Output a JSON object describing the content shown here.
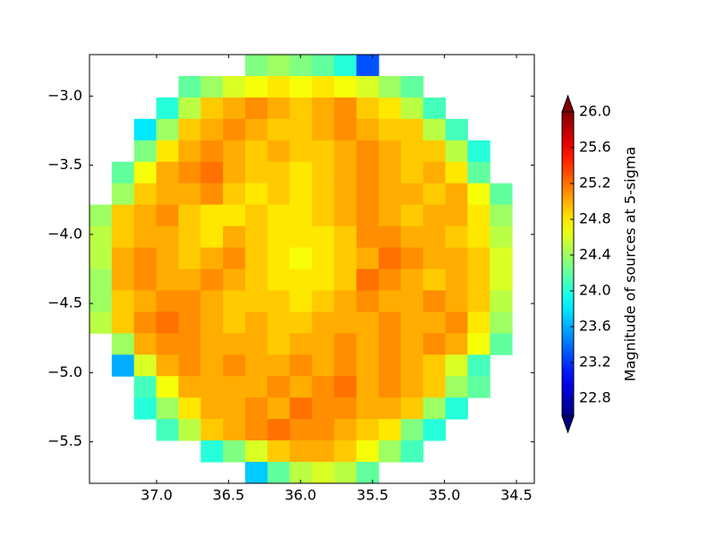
{
  "chart_data": {
    "type": "heatmap",
    "xlim": [
      37.466,
      34.376
    ],
    "ylim": [
      -5.8,
      -2.7
    ],
    "xticks": [
      {
        "value": 37.0,
        "label": "37.0"
      },
      {
        "value": 36.5,
        "label": "36.5"
      },
      {
        "value": 36.0,
        "label": "36.0"
      },
      {
        "value": 35.5,
        "label": "35.5"
      },
      {
        "value": 35.0,
        "label": "35.0"
      },
      {
        "value": 34.5,
        "label": "34.5"
      }
    ],
    "yticks": [
      {
        "value": -3.0,
        "label": "−3.0"
      },
      {
        "value": -3.5,
        "label": "−3.5"
      },
      {
        "value": -4.0,
        "label": "−4.0"
      },
      {
        "value": -4.5,
        "label": "−4.5"
      },
      {
        "value": -5.0,
        "label": "−5.0"
      },
      {
        "value": -5.5,
        "label": "−5.5"
      }
    ],
    "colorbar": {
      "label": "Magnitude of sources at 5-sigma",
      "lim": [
        22.6,
        26.0
      ],
      "colormap": "jet",
      "extend": "both",
      "ticks": [
        22.8,
        23.2,
        23.6,
        {
          "value": 24.0,
          "label": "24.0"
        },
        24.4,
        24.8,
        25.2,
        25.6,
        {
          "value": 26.0,
          "label": "26.0"
        }
      ]
    },
    "values": [
      [
        null,
        null,
        null,
        null,
        null,
        null,
        null,
        24.3,
        24.4,
        24.3,
        24.2,
        24.0,
        23.3,
        null,
        null,
        null,
        null,
        null,
        null,
        null
      ],
      [
        null,
        null,
        null,
        null,
        24.2,
        24.4,
        24.6,
        24.7,
        24.8,
        24.7,
        24.8,
        24.7,
        24.6,
        24.4,
        24.2,
        null,
        null,
        null,
        null,
        null
      ],
      [
        null,
        null,
        null,
        24.0,
        24.5,
        24.9,
        25.0,
        25.1,
        25.0,
        24.9,
        25.0,
        25.1,
        24.9,
        24.8,
        24.5,
        24.1,
        null,
        null,
        null,
        null
      ],
      [
        null,
        null,
        23.8,
        24.4,
        24.9,
        25.0,
        25.1,
        25.0,
        24.9,
        24.9,
        25.0,
        25.1,
        25.0,
        24.9,
        24.9,
        24.5,
        24.1,
        null,
        null,
        null
      ],
      [
        null,
        null,
        24.3,
        24.8,
        25.0,
        25.1,
        25.0,
        24.9,
        25.0,
        24.9,
        24.9,
        25.0,
        25.1,
        25.0,
        24.9,
        24.9,
        24.5,
        24.0,
        null,
        null
      ],
      [
        null,
        24.2,
        24.7,
        25.0,
        25.1,
        25.2,
        25.0,
        24.9,
        24.9,
        24.8,
        24.9,
        25.0,
        25.1,
        25.0,
        24.9,
        25.0,
        24.8,
        24.2,
        null,
        null
      ],
      [
        null,
        24.4,
        24.9,
        25.0,
        25.0,
        25.1,
        24.9,
        24.8,
        24.9,
        24.8,
        24.9,
        25.0,
        25.1,
        25.0,
        25.0,
        24.9,
        25.0,
        24.7,
        24.2,
        null
      ],
      [
        24.4,
        24.9,
        25.0,
        25.1,
        24.9,
        24.8,
        24.8,
        24.9,
        24.8,
        24.8,
        24.9,
        25.0,
        25.1,
        25.0,
        24.9,
        25.0,
        25.0,
        24.8,
        24.4,
        null
      ],
      [
        24.5,
        24.9,
        25.0,
        25.0,
        24.9,
        24.8,
        25.0,
        24.9,
        24.8,
        24.8,
        24.8,
        24.9,
        25.1,
        25.1,
        25.0,
        25.0,
        24.9,
        24.8,
        24.5,
        null
      ],
      [
        24.5,
        25.0,
        25.1,
        25.0,
        24.9,
        25.0,
        25.1,
        24.9,
        24.8,
        24.7,
        24.8,
        24.9,
        25.0,
        25.2,
        25.1,
        25.0,
        25.0,
        24.9,
        24.6,
        null
      ],
      [
        24.4,
        25.0,
        25.1,
        25.0,
        25.0,
        25.1,
        25.0,
        24.9,
        24.8,
        24.8,
        24.8,
        24.9,
        25.2,
        25.1,
        25.0,
        24.9,
        25.0,
        24.9,
        24.6,
        null
      ],
      [
        24.4,
        24.9,
        25.0,
        25.1,
        25.1,
        25.0,
        24.9,
        24.9,
        24.9,
        24.8,
        24.9,
        25.0,
        25.1,
        25.0,
        25.0,
        25.1,
        25.0,
        24.9,
        24.5,
        null
      ],
      [
        24.5,
        24.9,
        25.1,
        25.2,
        25.1,
        25.0,
        24.9,
        25.0,
        24.9,
        24.9,
        25.0,
        25.0,
        25.0,
        25.1,
        25.0,
        25.0,
        25.1,
        24.8,
        24.4,
        null
      ],
      [
        null,
        24.4,
        25.0,
        25.1,
        25.1,
        25.0,
        25.0,
        25.0,
        24.9,
        25.0,
        25.0,
        25.1,
        25.0,
        25.1,
        25.0,
        25.1,
        25.0,
        24.7,
        24.2,
        null
      ],
      [
        null,
        23.6,
        24.6,
        25.0,
        25.1,
        25.0,
        25.1,
        25.0,
        25.0,
        25.1,
        25.0,
        25.1,
        25.0,
        25.1,
        25.0,
        24.9,
        24.6,
        24.1,
        null,
        null
      ],
      [
        null,
        null,
        24.1,
        24.7,
        25.0,
        25.0,
        25.0,
        25.0,
        25.1,
        25.0,
        25.1,
        25.2,
        25.0,
        25.1,
        25.0,
        24.9,
        24.4,
        24.2,
        null,
        null
      ],
      [
        null,
        null,
        24.0,
        24.4,
        24.8,
        25.0,
        25.0,
        25.1,
        25.0,
        25.2,
        25.1,
        25.1,
        25.0,
        25.0,
        24.9,
        24.4,
        24.0,
        null,
        null,
        null
      ],
      [
        null,
        null,
        null,
        24.1,
        24.5,
        24.9,
        25.0,
        25.1,
        25.2,
        25.1,
        25.1,
        25.0,
        24.9,
        24.8,
        24.3,
        24.0,
        null,
        null,
        null,
        null
      ],
      [
        null,
        null,
        null,
        null,
        null,
        24.0,
        24.3,
        24.6,
        24.9,
        25.0,
        25.0,
        24.9,
        24.7,
        24.4,
        24.1,
        null,
        null,
        null,
        null,
        null
      ],
      [
        null,
        null,
        null,
        null,
        null,
        null,
        null,
        23.7,
        24.2,
        24.5,
        24.6,
        24.5,
        24.2,
        null,
        null,
        null,
        null,
        null,
        null,
        null
      ]
    ]
  }
}
